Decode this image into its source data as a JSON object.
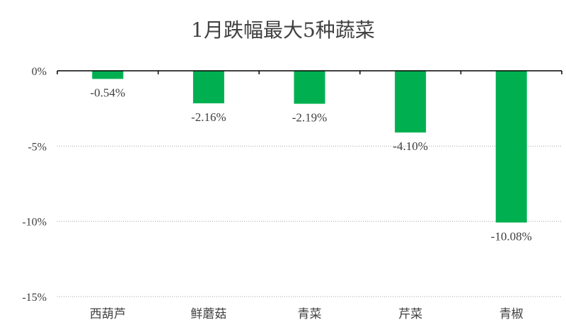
{
  "chart_data": {
    "type": "bar",
    "title": "1月跌幅最大5种蔬菜",
    "categories": [
      "西葫芦",
      "鲜蘑菇",
      "青菜",
      "芹菜",
      "青椒"
    ],
    "values": [
      -0.54,
      -2.16,
      -2.19,
      -4.1,
      -10.08
    ],
    "data_labels": [
      "-0.54%",
      "-2.16%",
      "-2.19%",
      "-4.10%",
      "-10.08%"
    ],
    "y_ticks": [
      0,
      -5,
      -10,
      -15
    ],
    "y_tick_labels": [
      "0%",
      "-5%",
      "-10%",
      "-15%"
    ],
    "ylim": [
      -15,
      0
    ],
    "xlabel": "",
    "ylabel": "",
    "grid": true,
    "bar_color": "#00b050"
  }
}
